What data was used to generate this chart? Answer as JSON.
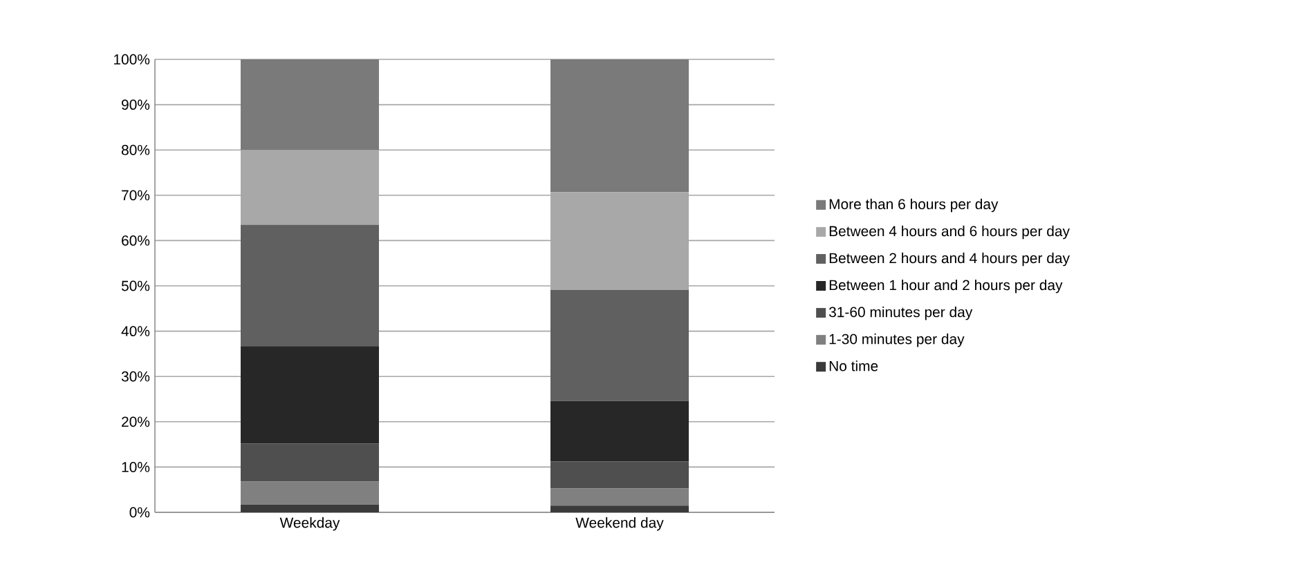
{
  "chart_data": {
    "type": "bar",
    "stacked": true,
    "categories": [
      "Weekday",
      "Weekend day"
    ],
    "series": [
      {
        "name": "No time",
        "color": "#3a3a3a",
        "values": [
          1.7,
          1.5
        ]
      },
      {
        "name": "1-30 minutes per day",
        "color": "#808080",
        "values": [
          5.1,
          3.8
        ]
      },
      {
        "name": "31-60 minutes per day",
        "color": "#4f4f4f",
        "values": [
          8.4,
          5.9
        ]
      },
      {
        "name": "Between 1 hour and 2 hours per day",
        "color": "#272727",
        "values": [
          21.5,
          13.4
        ]
      },
      {
        "name": "Between 2 hours and 4 hours per day",
        "color": "#606060",
        "values": [
          26.8,
          24.5
        ]
      },
      {
        "name": "Between 4 hours and 6 hours per day",
        "color": "#a8a8a8",
        "values": [
          16.5,
          21.6
        ]
      },
      {
        "name": "More than 6 hours per day",
        "color": "#7a7a7a",
        "values": [
          20.0,
          29.3
        ]
      }
    ],
    "ylim": [
      0,
      100
    ],
    "yticks": [
      {
        "value": 0,
        "label": "0%"
      },
      {
        "value": 10,
        "label": "10%"
      },
      {
        "value": 20,
        "label": "20%"
      },
      {
        "value": 30,
        "label": "30%"
      },
      {
        "value": 40,
        "label": "40%"
      },
      {
        "value": 50,
        "label": "50%"
      },
      {
        "value": 60,
        "label": "60%"
      },
      {
        "value": 70,
        "label": "70%"
      },
      {
        "value": 80,
        "label": "80%"
      },
      {
        "value": 90,
        "label": "90%"
      },
      {
        "value": 100,
        "label": "100%"
      }
    ],
    "grid": "y",
    "legend": "right"
  }
}
